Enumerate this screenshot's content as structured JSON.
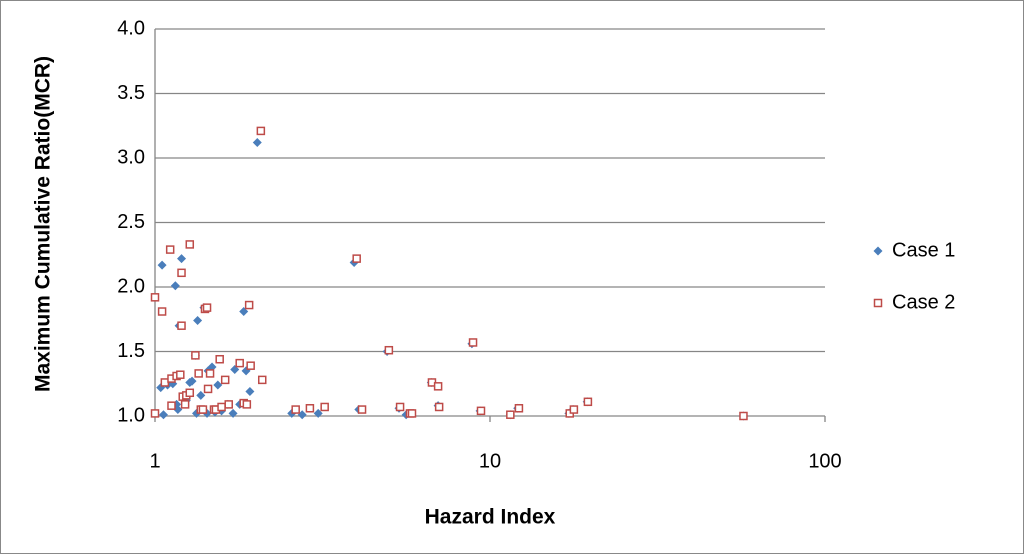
{
  "chart_data": {
    "type": "scatter",
    "x_label": "Hazard Index",
    "y_label": "Maximum Cumulative Ratio(MCR)",
    "xscale": "log",
    "xlim": [
      1,
      100
    ],
    "xticks": [
      1,
      10,
      100
    ],
    "ylim": [
      1,
      4
    ],
    "yticks": [
      {
        "value": 1,
        "label": "1.0"
      },
      1.5,
      {
        "value": 2,
        "label": "2.0"
      },
      2.5,
      {
        "value": 3,
        "label": "3.0"
      },
      3.5,
      {
        "value": 4,
        "label": "4.0"
      }
    ],
    "grid": true,
    "legend": "right",
    "series": [
      {
        "name": "Case 1",
        "color": "#4a7ebb",
        "marker": "diamond",
        "x": [
          1.04,
          1.06,
          1.05,
          1.09,
          1.13,
          1.15,
          1.16,
          1.17,
          1.18,
          1.2,
          1.24,
          1.27,
          1.29,
          1.32,
          1.33,
          1.34,
          1.37,
          1.4,
          1.43,
          1.44,
          1.48,
          1.51,
          1.54,
          1.58,
          1.65,
          1.71,
          1.73,
          1.79,
          1.84,
          1.87,
          1.92,
          2.02,
          2.56,
          2.75,
          3.07,
          3.93,
          4.06,
          4.93,
          5.35,
          5.62,
          6.68,
          7.0,
          8.83,
          9.34,
          11.5,
          12.1,
          17.2,
          17.7,
          19.5,
          57.1
        ],
        "values": [
          1.22,
          1.01,
          2.17,
          1.24,
          1.25,
          2.01,
          1.09,
          1.05,
          1.7,
          2.22,
          1.12,
          1.26,
          1.27,
          1.47,
          1.02,
          1.74,
          1.16,
          1.84,
          1.02,
          1.35,
          1.38,
          1.03,
          1.24,
          1.04,
          1.09,
          1.02,
          1.36,
          1.09,
          1.81,
          1.35,
          1.19,
          3.12,
          1.02,
          1.01,
          1.02,
          2.19,
          1.05,
          1.5,
          1.06,
          1.01,
          1.26,
          1.08,
          1.56,
          1.04,
          1.01,
          1.06,
          1.02,
          1.05,
          1.11,
          1.0
        ]
      },
      {
        "name": "Case 2",
        "color": "#be4b48",
        "marker": "square",
        "x": [
          1.0,
          1.0,
          1.05,
          1.07,
          1.11,
          1.12,
          1.12,
          1.16,
          1.19,
          1.2,
          1.2,
          1.21,
          1.23,
          1.24,
          1.27,
          1.27,
          1.32,
          1.35,
          1.37,
          1.39,
          1.41,
          1.43,
          1.44,
          1.46,
          1.5,
          1.52,
          1.56,
          1.58,
          1.62,
          1.66,
          1.79,
          1.84,
          1.88,
          1.91,
          1.93,
          2.07,
          2.09,
          2.63,
          2.9,
          3.21,
          4.0,
          4.15,
          4.99,
          5.39,
          5.77,
          5.85,
          6.71,
          7.0,
          7.05,
          8.9,
          9.4,
          11.5,
          12.2,
          17.3,
          17.8,
          19.6,
          57.1
        ],
        "values": [
          1.92,
          1.02,
          1.81,
          1.26,
          2.29,
          1.29,
          1.08,
          1.31,
          1.32,
          1.7,
          2.11,
          1.15,
          1.09,
          1.16,
          2.33,
          1.18,
          1.47,
          1.33,
          1.05,
          1.05,
          1.83,
          1.84,
          1.21,
          1.33,
          1.05,
          1.05,
          1.44,
          1.07,
          1.28,
          1.09,
          1.41,
          1.1,
          1.09,
          1.86,
          1.39,
          3.21,
          1.28,
          1.05,
          1.06,
          1.07,
          2.22,
          1.05,
          1.51,
          1.07,
          1.02,
          1.02,
          1.26,
          1.23,
          1.07,
          1.57,
          1.04,
          1.01,
          1.06,
          1.02,
          1.05,
          1.11,
          1.0
        ]
      }
    ]
  }
}
